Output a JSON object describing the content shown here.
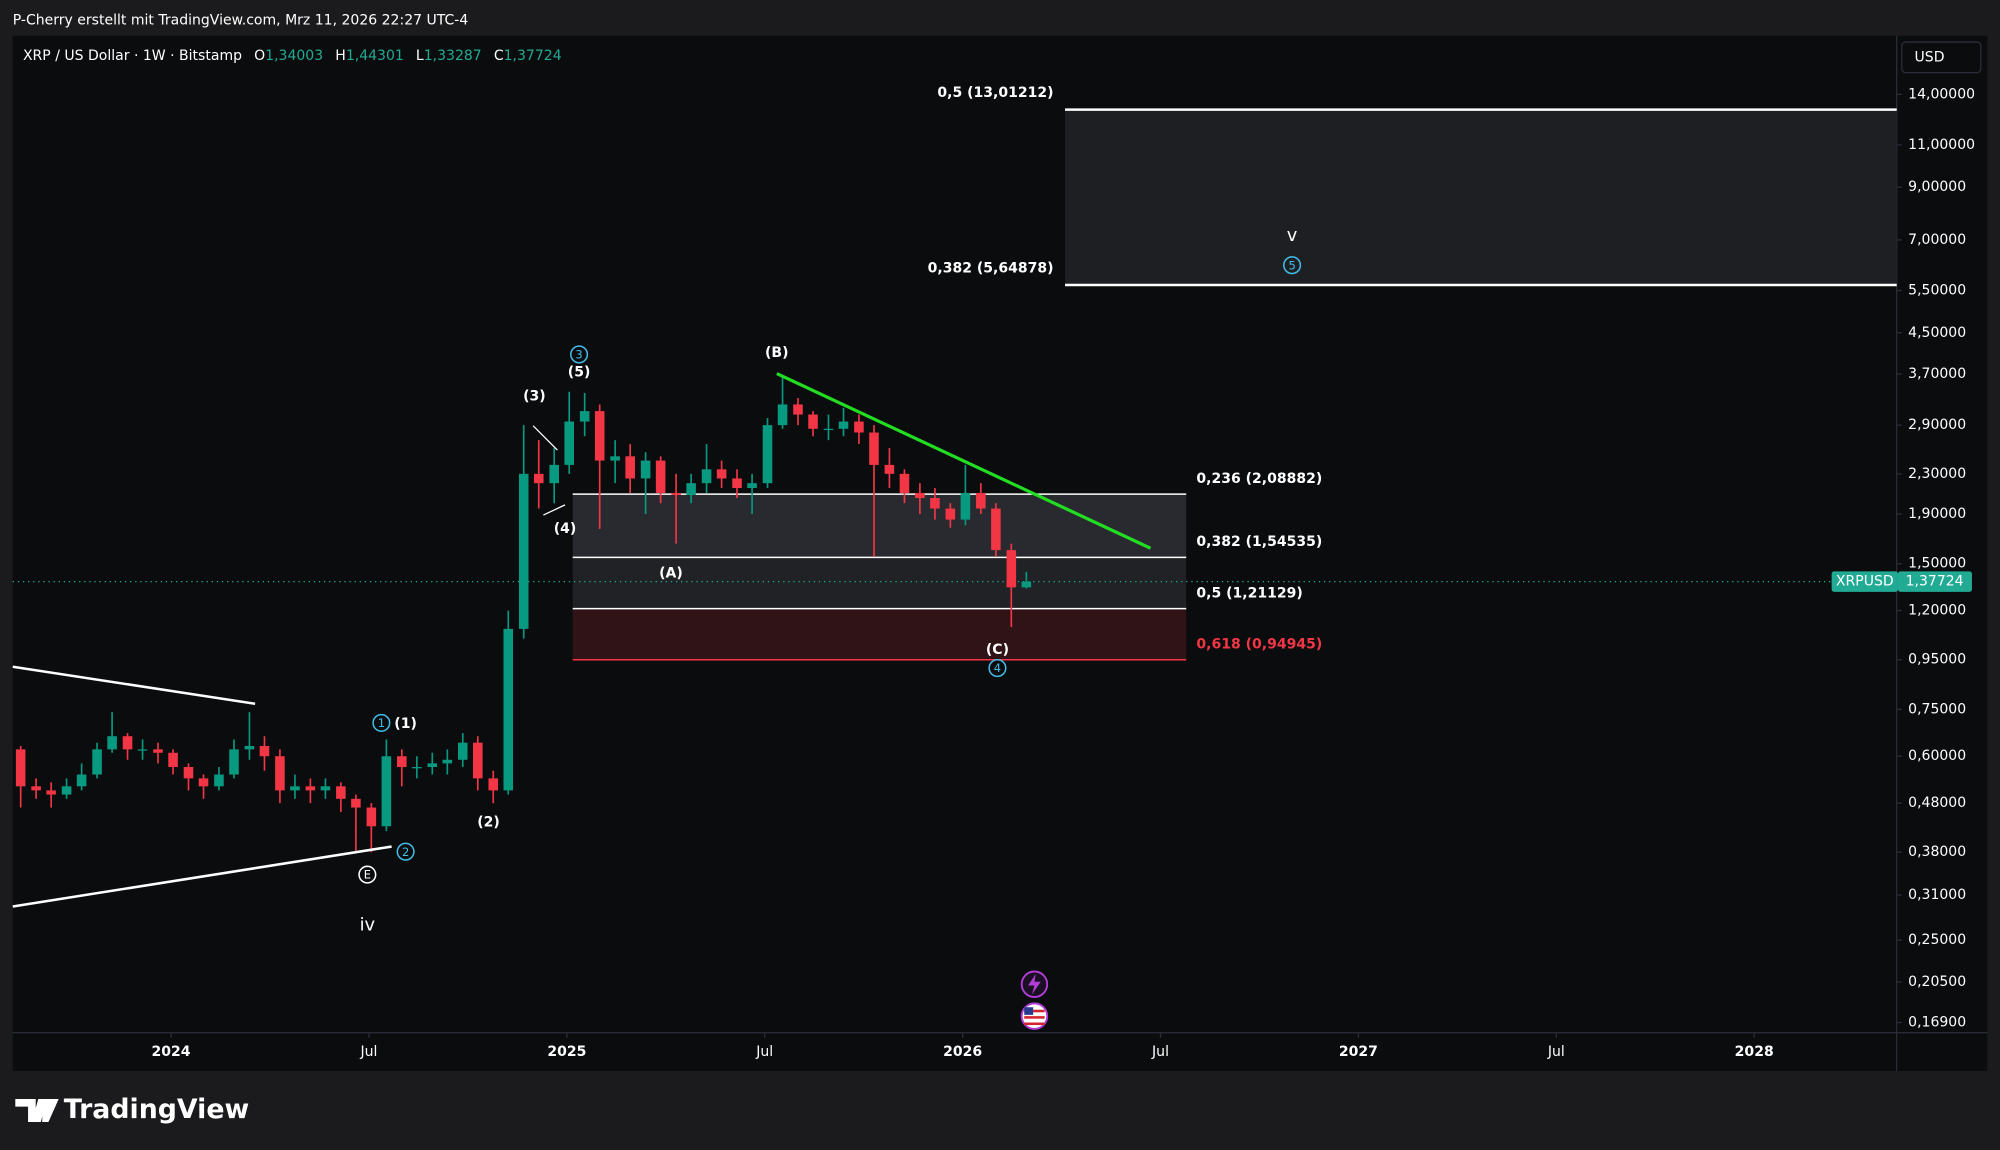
{
  "chart_data": {
    "type": "candlestick",
    "attribution": "P-Cherry erstellt mit TradingView.com, Mrz 11, 2026 22:27 UTC-4",
    "title": "XRP / US Dollar · 1W · Bitstamp",
    "ohlc_header": [
      {
        "key": "O",
        "text": "1,34003"
      },
      {
        "key": "H",
        "text": "1,44301"
      },
      {
        "key": "L",
        "text": "1,33287"
      },
      {
        "key": "C",
        "text": "1,37724"
      }
    ],
    "currency": "USD",
    "symbol": "XRPUSD",
    "brand": "TradingView",
    "log_scale": true,
    "up_color": "#089981",
    "down_color": "#f23645",
    "x": [
      2023.62,
      2023.659,
      2023.697,
      2023.736,
      2023.774,
      2023.813,
      2023.851,
      2023.89,
      2023.928,
      2023.967,
      2024.005,
      2024.044,
      2024.082,
      2024.121,
      2024.159,
      2024.198,
      2024.236,
      2024.275,
      2024.313,
      2024.352,
      2024.39,
      2024.429,
      2024.467,
      2024.506,
      2024.544,
      2024.583,
      2024.621,
      2024.66,
      2024.698,
      2024.737,
      2024.775,
      2024.814,
      2024.852,
      2024.891,
      2024.929,
      2024.968,
      2025.006,
      2025.045,
      2025.083,
      2025.122,
      2025.16,
      2025.199,
      2025.237,
      2025.276,
      2025.314,
      2025.353,
      2025.391,
      2025.43,
      2025.468,
      2025.507,
      2025.545,
      2025.584,
      2025.622,
      2025.661,
      2025.699,
      2025.738,
      2025.776,
      2025.815,
      2025.853,
      2025.892,
      2025.93,
      2025.969,
      2026.007,
      2026.046,
      2026.084,
      2026.123,
      2026.161
    ],
    "open": [
      0.62,
      0.52,
      0.51,
      0.5,
      0.52,
      0.55,
      0.62,
      0.66,
      0.62,
      0.62,
      0.61,
      0.57,
      0.54,
      0.52,
      0.55,
      0.62,
      0.63,
      0.6,
      0.51,
      0.52,
      0.51,
      0.52,
      0.49,
      0.47,
      0.43,
      0.6,
      0.57,
      0.57,
      0.58,
      0.59,
      0.64,
      0.54,
      0.51,
      1.1,
      2.3,
      2.2,
      2.4,
      2.95,
      3.1,
      2.45,
      2.5,
      2.25,
      2.45,
      2.1,
      2.08,
      2.2,
      2.35,
      2.25,
      2.15,
      2.2,
      2.9,
      3.2,
      3.05,
      2.85,
      2.85,
      2.95,
      2.8,
      2.4,
      2.3,
      2.1,
      2.05,
      1.95,
      1.85,
      2.1,
      1.95,
      1.6,
      1.34003
    ],
    "high": [
      0.63,
      0.54,
      0.53,
      0.54,
      0.58,
      0.64,
      0.74,
      0.67,
      0.65,
      0.64,
      0.62,
      0.58,
      0.55,
      0.57,
      0.65,
      0.74,
      0.66,
      0.62,
      0.55,
      0.54,
      0.54,
      0.53,
      0.5,
      0.48,
      0.65,
      0.62,
      0.6,
      0.61,
      0.62,
      0.67,
      0.66,
      0.56,
      1.2,
      2.9,
      2.7,
      2.6,
      3.4,
      3.38,
      3.2,
      2.7,
      2.65,
      2.55,
      2.5,
      2.3,
      2.3,
      2.65,
      2.45,
      2.35,
      2.3,
      3.0,
      3.65,
      3.3,
      3.1,
      3.05,
      3.15,
      3.05,
      2.9,
      2.6,
      2.35,
      2.2,
      2.15,
      2.0,
      2.4,
      2.2,
      2.0,
      1.65,
      1.44301
    ],
    "low": [
      0.47,
      0.49,
      0.47,
      0.49,
      0.51,
      0.54,
      0.61,
      0.59,
      0.59,
      0.58,
      0.55,
      0.51,
      0.49,
      0.51,
      0.54,
      0.59,
      0.56,
      0.48,
      0.49,
      0.48,
      0.49,
      0.46,
      0.38,
      0.38,
      0.42,
      0.52,
      0.54,
      0.55,
      0.55,
      0.57,
      0.51,
      0.48,
      0.5,
      1.05,
      1.95,
      2.0,
      2.3,
      2.75,
      1.77,
      2.2,
      2.1,
      1.9,
      2.0,
      1.65,
      2.0,
      2.1,
      2.15,
      2.05,
      1.9,
      2.15,
      2.85,
      2.9,
      2.75,
      2.7,
      2.75,
      2.65,
      1.55,
      2.15,
      2.0,
      1.9,
      1.85,
      1.78,
      1.8,
      1.9,
      1.55,
      1.11,
      1.33287
    ],
    "close": [
      0.52,
      0.51,
      0.5,
      0.52,
      0.55,
      0.62,
      0.66,
      0.62,
      0.62,
      0.61,
      0.57,
      0.54,
      0.52,
      0.55,
      0.62,
      0.63,
      0.6,
      0.51,
      0.52,
      0.51,
      0.52,
      0.49,
      0.47,
      0.43,
      0.6,
      0.57,
      0.57,
      0.58,
      0.59,
      0.64,
      0.54,
      0.51,
      1.1,
      2.3,
      2.2,
      2.4,
      2.95,
      3.1,
      2.45,
      2.5,
      2.25,
      2.45,
      2.1,
      2.08,
      2.2,
      2.35,
      2.25,
      2.15,
      2.2,
      2.9,
      3.2,
      3.05,
      2.85,
      2.85,
      2.95,
      2.8,
      2.4,
      2.3,
      2.1,
      2.05,
      1.95,
      1.85,
      2.1,
      1.95,
      1.6,
      1.34003,
      1.37724
    ],
    "xlim": [
      2023.6,
      2028.36
    ],
    "ylim": [
      0.161,
      18.5
    ],
    "xticks": [
      2024,
      {
        "value": 2024.5,
        "label": "Jul"
      },
      2025,
      {
        "value": 2025.5,
        "label": "Jul"
      },
      2026,
      {
        "value": 2026.5,
        "label": "Jul"
      },
      2027,
      {
        "value": 2027.5,
        "label": "Jul"
      },
      2028
    ],
    "yticks": [
      {
        "value": 0.169,
        "label": "0,16900"
      },
      {
        "value": 0.205,
        "label": "0,20500"
      },
      {
        "value": 0.25,
        "label": "0,25000"
      },
      {
        "value": 0.31,
        "label": "0,31000"
      },
      {
        "value": 0.38,
        "label": "0,38000"
      },
      {
        "value": 0.48,
        "label": "0,48000"
      },
      {
        "value": 0.6,
        "label": "0,60000"
      },
      {
        "value": 0.75,
        "label": "0,75000"
      },
      {
        "value": 0.95,
        "label": "0,95000"
      },
      {
        "value": 1.2,
        "label": "1,20000"
      },
      {
        "value": 1.5,
        "label": "1,50000"
      },
      {
        "value": 1.9,
        "label": "1,90000"
      },
      {
        "value": 2.3,
        "label": "2,30000"
      },
      {
        "value": 2.9,
        "label": "2,90000"
      },
      {
        "value": 3.7,
        "label": "3,70000"
      },
      {
        "value": 4.5,
        "label": "4,50000"
      },
      {
        "value": 5.5,
        "label": "5,50000"
      },
      {
        "value": 7,
        "label": "7,00000"
      },
      {
        "value": 9,
        "label": "9,00000"
      },
      {
        "value": 11,
        "label": "11,00000"
      },
      {
        "value": 14,
        "label": "14,00000"
      }
    ],
    "fib_zones": [
      {
        "levels": [
          {
            "value": 13.01212,
            "label": "0,5 (13,01212)",
            "color": "#ffffff"
          },
          {
            "value": 5.64878,
            "label": "0,382 (5,64878)",
            "color": "#ffffff"
          }
        ]
      },
      {
        "levels": [
          {
            "value": 2.08882,
            "label": "0,236 (2,08882)",
            "color": "#ffffff"
          },
          {
            "value": 1.54535,
            "label": "0,382 (1,54535)",
            "color": "#ffffff"
          },
          {
            "value": 1.21129,
            "label": "0,5 (1,21129)",
            "color": "#ffffff"
          },
          {
            "value": 0.94945,
            "label": "0,618 (0,94945)",
            "color": "#f23645"
          }
        ]
      }
    ],
    "wave_labels": [
      {
        "text": "iv",
        "circled": false
      },
      {
        "text": "E",
        "circled": true,
        "color": "#ffffff"
      },
      {
        "text": "1",
        "circled": true,
        "color": "#42bde8"
      },
      {
        "text": "(1)",
        "circled": false
      },
      {
        "text": "2",
        "circled": true,
        "color": "#42bde8"
      },
      {
        "text": "(2)",
        "circled": false
      },
      {
        "text": "(3)",
        "circled": false
      },
      {
        "text": "(4)",
        "circled": false
      },
      {
        "text": "(5)",
        "circled": false
      },
      {
        "text": "3",
        "circled": true,
        "color": "#42bde8"
      },
      {
        "text": "(A)",
        "circled": false
      },
      {
        "text": "(B)",
        "circled": false
      },
      {
        "text": "(C)",
        "circled": false
      },
      {
        "text": "4",
        "circled": true,
        "color": "#42bde8"
      },
      {
        "text": "v",
        "circled": false
      },
      {
        "text": "5",
        "circled": true,
        "color": "#42bde8"
      }
    ]
  }
}
